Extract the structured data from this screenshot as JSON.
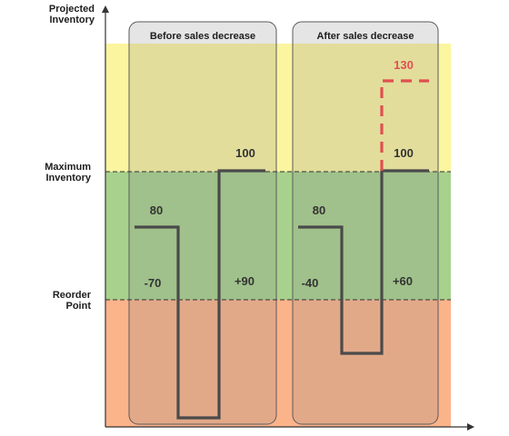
{
  "y_axis_label": "Projected Inventory",
  "levels": {
    "maximum_label": "Maximum Inventory",
    "reorder_label": "Reorder Point"
  },
  "zone_colors": {
    "top": "#fbf5a0",
    "middle": "#a7d18c",
    "bottom": "#fbb38a"
  },
  "panels": [
    {
      "title": "Before sales decrease",
      "start_value": "80",
      "decrease_label": "-70",
      "increase_label": "+90",
      "end_value": "100"
    },
    {
      "title": "After sales decrease",
      "start_value": "80",
      "decrease_label": "-40",
      "increase_label": "+60",
      "end_value": "100",
      "excess_value": "130",
      "excess_color": "#e05050"
    }
  ],
  "line_color": "#4a4a4a"
}
